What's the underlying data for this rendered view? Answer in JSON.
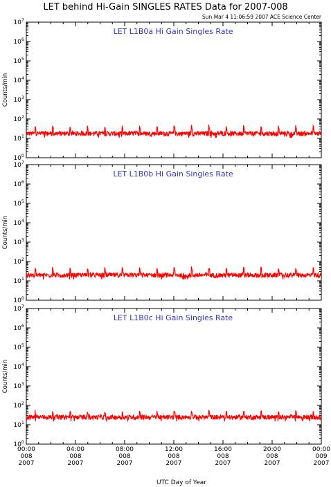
{
  "page": {
    "title": "LET behind Hi-Gain SINGLES RATES Data for 2007-008",
    "timestamp": "Sun Mar  4 11:06:59 2007 ACE Science Center",
    "xlabel": "UTC Day of Year"
  },
  "colors": {
    "data": "#ff0000",
    "panel_title": "#3333cc",
    "axis": "#000000"
  },
  "chart_data": [
    {
      "type": "line",
      "title": "LET L1B0a Hi Gain Singles Rate",
      "ylabel": "Counts/min",
      "yscale": "log",
      "ylim": [
        1,
        10000000
      ],
      "y_ticks": [
        "10^0",
        "10^1",
        "10^2",
        "10^3",
        "10^4",
        "10^5",
        "10^6",
        "10^7"
      ],
      "baseline": 18,
      "peak": 45,
      "series": [
        {
          "values_note": "",
          "color": "#ff0000"
        }
      ]
    },
    {
      "type": "line",
      "title": "LET L1B0b Hi Gain Singles Rate",
      "ylabel": "Counts/min",
      "yscale": "log",
      "ylim": [
        1,
        10000000
      ],
      "y_ticks": [
        "10^0",
        "10^1",
        "10^2",
        "10^3",
        "10^4",
        "10^5",
        "10^6",
        "10^7"
      ],
      "baseline": 20,
      "peak": 50,
      "series": [
        {
          "values_note": "",
          "color": "#ff0000"
        }
      ]
    },
    {
      "type": "line",
      "title": "LET L1B0c Hi Gain Singles Rate",
      "ylabel": "Counts/min",
      "yscale": "log",
      "ylim": [
        1,
        10000000
      ],
      "y_ticks": [
        "10^0",
        "10^1",
        "10^2",
        "10^3",
        "10^4",
        "10^5",
        "10^6",
        "10^7"
      ],
      "baseline": 25,
      "peak": 55,
      "series": [
        {
          "values_note": "",
          "color": "#ff0000"
        }
      ]
    }
  ],
  "x_axis": {
    "ticks": [
      {
        "time": "00:00",
        "day": "008",
        "year": "2007"
      },
      {
        "time": "04:00",
        "day": "008",
        "year": "2007"
      },
      {
        "time": "08:00",
        "day": "008",
        "year": "2007"
      },
      {
        "time": "12:00",
        "day": "008",
        "year": "2007"
      },
      {
        "time": "16:00",
        "day": "008",
        "year": "2007"
      },
      {
        "time": "20:00",
        "day": "008",
        "year": "2007"
      },
      {
        "time": "00:00",
        "day": "009",
        "year": "2007"
      }
    ],
    "range_hours": [
      0,
      24
    ]
  }
}
